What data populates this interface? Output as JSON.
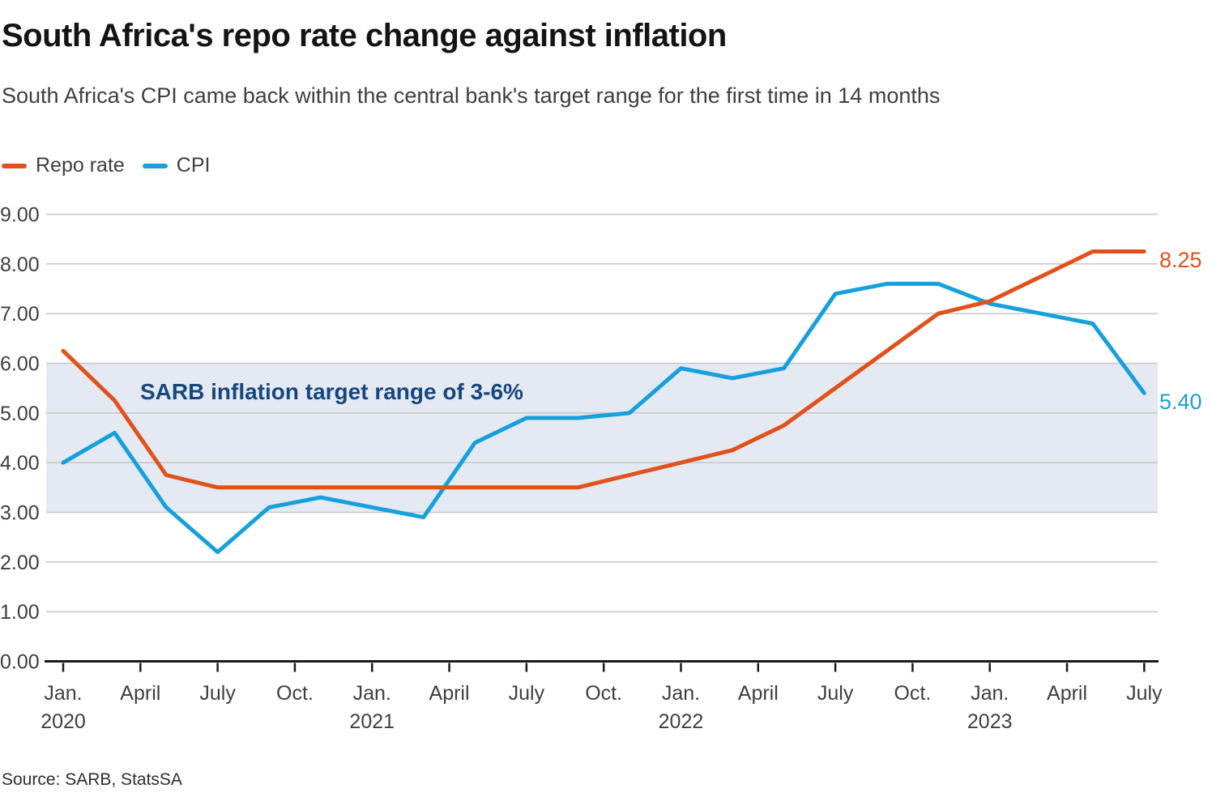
{
  "header": {
    "title": "South Africa's repo rate change against inflation",
    "subtitle": "South Africa's CPI came back within the central bank's target range for the first time in 14 months"
  },
  "legend": [
    {
      "label": "Repo rate",
      "color": "#e1511b"
    },
    {
      "label": "CPI",
      "color": "#16a0dd"
    }
  ],
  "chart_data": {
    "type": "line",
    "x": [
      "Jan. 2020",
      "Mar. 2020",
      "May 2020",
      "Jul. 2020",
      "Sep. 2020",
      "Nov. 2020",
      "Jan. 2021",
      "Mar. 2021",
      "May 2021",
      "Jul. 2021",
      "Sep. 2021",
      "Nov. 2021",
      "Jan. 2022",
      "Mar. 2022",
      "May 2022",
      "Jul. 2022",
      "Sep. 2022",
      "Nov. 2022",
      "Jan. 2023",
      "Mar. 2023",
      "May 2023",
      "Jul. 2023"
    ],
    "series": [
      {
        "name": "Repo rate",
        "color": "#e1511b",
        "values": [
          6.25,
          5.25,
          3.75,
          3.5,
          3.5,
          3.5,
          3.5,
          3.5,
          3.5,
          3.5,
          3.5,
          3.75,
          4.0,
          4.25,
          4.75,
          5.5,
          6.25,
          7.0,
          7.25,
          7.75,
          8.25,
          8.25
        ]
      },
      {
        "name": "CPI",
        "color": "#16a0dd",
        "values": [
          4.0,
          4.6,
          3.1,
          2.2,
          3.1,
          3.3,
          3.1,
          2.9,
          4.4,
          4.9,
          4.9,
          5.0,
          5.9,
          5.7,
          5.9,
          7.4,
          7.6,
          7.6,
          7.2,
          7.0,
          6.8,
          5.4
        ]
      }
    ],
    "title": "South Africa's repo rate change against inflation",
    "xlabel": "",
    "ylabel": "",
    "ylim": [
      0,
      9
    ],
    "grid": true,
    "legend_position": "top-left",
    "y_ticks": [
      "0.00",
      "1.00",
      "2.00",
      "3.00",
      "4.00",
      "5.00",
      "6.00",
      "7.00",
      "8.00",
      "9.00"
    ],
    "x_ticks": [
      {
        "label": "Jan.",
        "year": "2020"
      },
      {
        "label": "April"
      },
      {
        "label": "July"
      },
      {
        "label": "Oct."
      },
      {
        "label": "Jan.",
        "year": "2021"
      },
      {
        "label": "April"
      },
      {
        "label": "July"
      },
      {
        "label": "Oct."
      },
      {
        "label": "Jan.",
        "year": "2022"
      },
      {
        "label": "April"
      },
      {
        "label": "July"
      },
      {
        "label": "Oct."
      },
      {
        "label": "Jan.",
        "year": "2023"
      },
      {
        "label": "April"
      },
      {
        "label": "July"
      }
    ],
    "band": {
      "from": 3,
      "to": 6,
      "label": "SARB inflation target range of 3-6%",
      "color": "#e4e9f2",
      "label_color": "#17477f"
    },
    "end_labels": [
      {
        "text": "8.25",
        "series": "Repo rate",
        "color": "#e1511b"
      },
      {
        "text": "5.40",
        "series": "CPI",
        "color": "#16a0dd"
      }
    ],
    "gridline_color": "#c9c9c9",
    "axis_color": "#1a1a1a",
    "tick_label_color": "#3f3f3f"
  },
  "source": {
    "text": "Source: SARB, StatsSA"
  }
}
